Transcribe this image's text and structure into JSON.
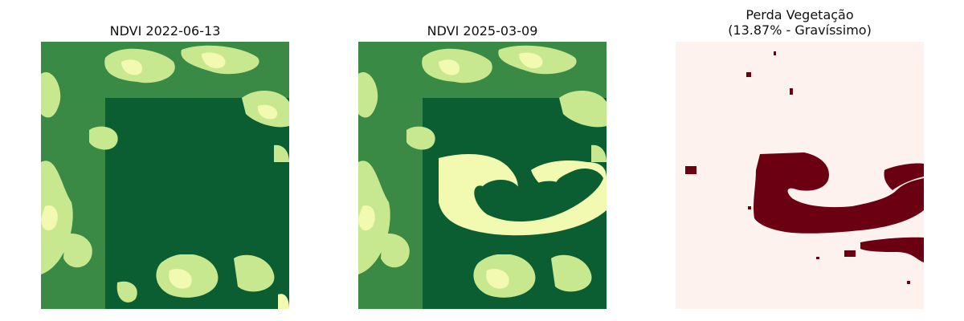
{
  "panels": [
    {
      "title": "NDVI 2022-06-13",
      "colormap": "ndvi-greens"
    },
    {
      "title": "NDVI 2025-03-09",
      "colormap": "ndvi-greens"
    },
    {
      "title": "Perda Vegetação\n(13.87% - Gravíssimo)",
      "colormap": "loss-reds"
    }
  ],
  "colors": {
    "ndvi_high": "#0b5e32",
    "ndvi_mid": "#4f9a4d",
    "ndvi_low": "#f7fbb4",
    "loss_background": "#fdf2ee",
    "loss_marked": "#6b0012"
  },
  "loss_percent": 13.87,
  "severity": "Gravíssimo"
}
